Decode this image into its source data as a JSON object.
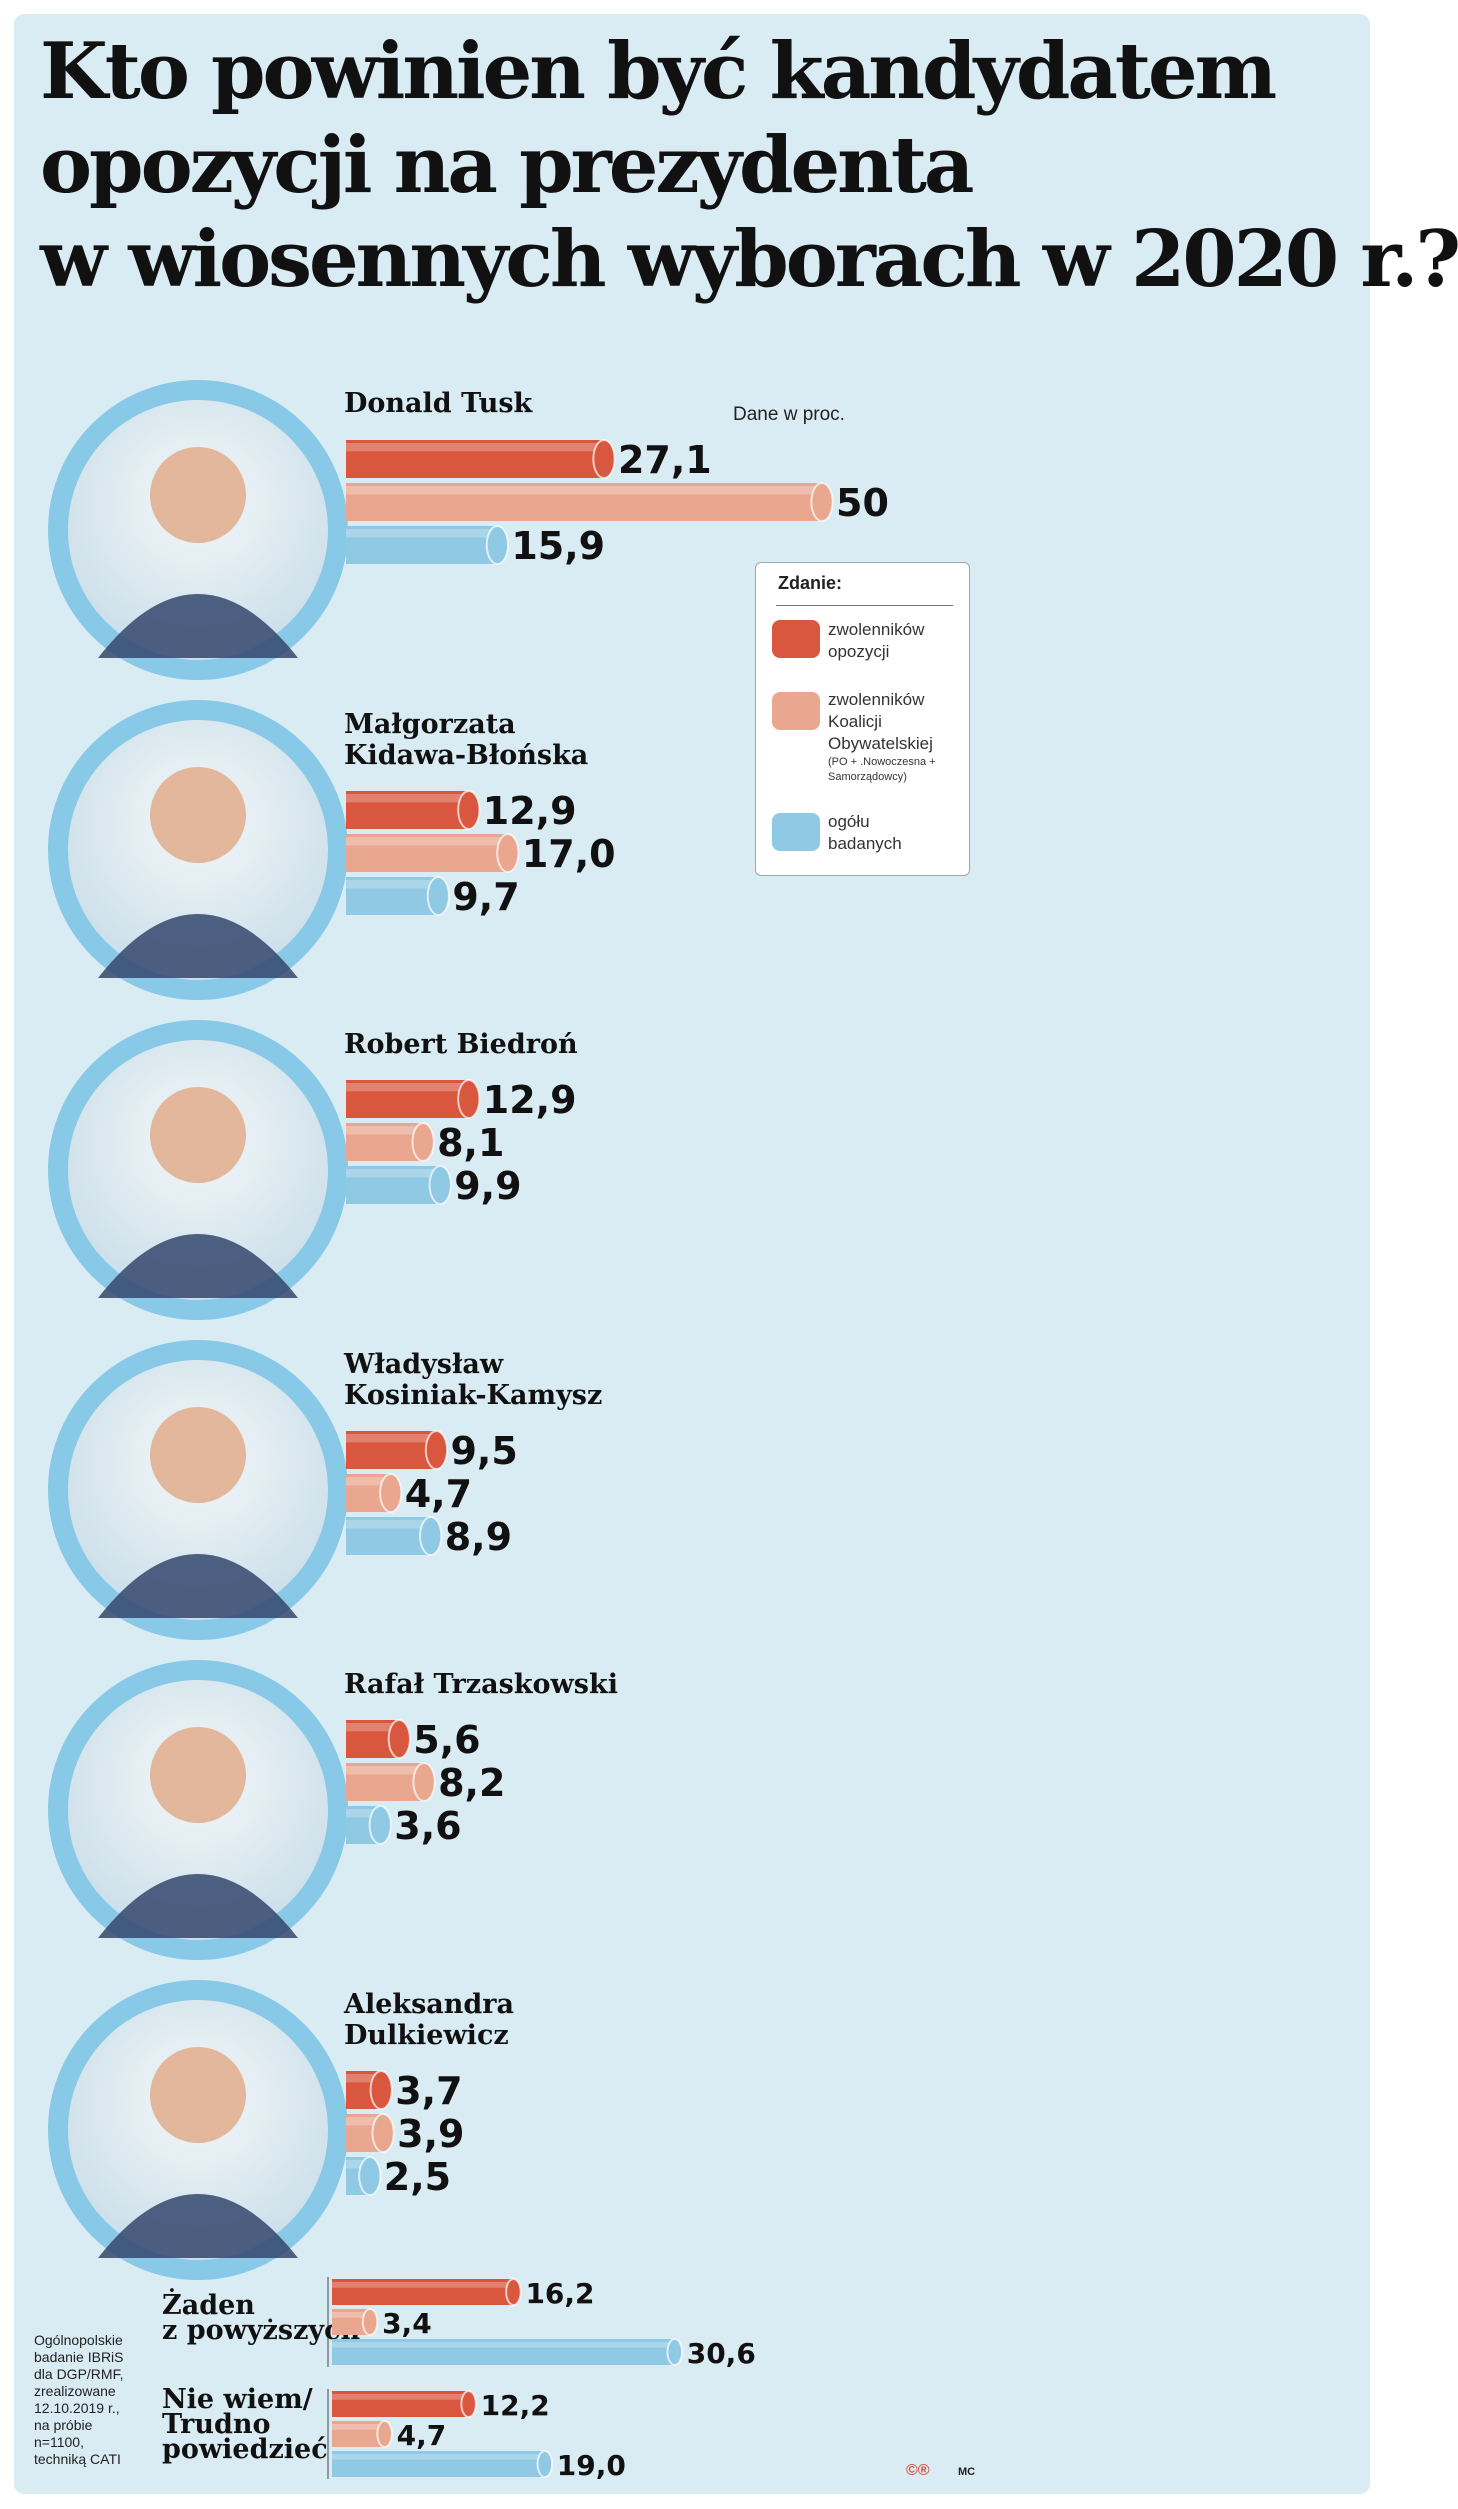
{
  "title_lines": [
    "Kto powinien być kandydatem",
    "opozycji na prezydenta",
    "w wiosennych wyborach  w 2020 r.?"
  ],
  "unit_note": "Dane w proc.",
  "legend": {
    "title": "Zdanie:",
    "items": [
      {
        "label": "zwolenników opozycji"
      },
      {
        "label": "zwolenników Koalicji Obywatelskiej",
        "note": "(PO + .Nowoczesna + Samorządowcy)"
      },
      {
        "label": "ogółu badanych"
      }
    ]
  },
  "colors": {
    "opozycja": "#d9573f",
    "ko": "#e9a78f",
    "ogol": "#8fc9e3",
    "ring": "#87c9e6"
  },
  "source_lines": [
    "Ogólnopolskie",
    "badanie IBRiS",
    "dla DGP/RMF,",
    "zrealizowane",
    "12.10.2019 r.,",
    "na próbie",
    "n=1100,",
    "techniką CATI"
  ],
  "footer": {
    "logo": "©®",
    "author": "MC"
  },
  "chart_data": {
    "type": "bar",
    "orientation": "horizontal",
    "title": "Kto powinien być kandydatem opozycji na prezydenta w wiosennych wyborach  w 2020 r.?",
    "unit": "Dane w proc.",
    "series_names": [
      "zwolenników opozycji",
      "zwolenników Koalicji Obywatelskiej",
      "ogółu badanych"
    ],
    "candidates": [
      {
        "name": [
          "Donald Tusk"
        ],
        "values": [
          27.1,
          50,
          15.9
        ],
        "labels": [
          "27,1",
          "50",
          "15,9"
        ]
      },
      {
        "name": [
          "Małgorzata",
          "Kidawa-Błońska"
        ],
        "values": [
          12.9,
          17.0,
          9.7
        ],
        "labels": [
          "12,9",
          "17,0",
          "9,7"
        ]
      },
      {
        "name": [
          "Robert Biedroń"
        ],
        "values": [
          12.9,
          8.1,
          9.9
        ],
        "labels": [
          "12,9",
          "8,1",
          "9,9"
        ]
      },
      {
        "name": [
          "Władysław",
          "Kosiniak-Kamysz"
        ],
        "values": [
          9.5,
          4.7,
          8.9
        ],
        "labels": [
          "9,5",
          "4,7",
          "8,9"
        ]
      },
      {
        "name": [
          "Rafał Trzaskowski"
        ],
        "values": [
          5.6,
          8.2,
          3.6
        ],
        "labels": [
          "5,6",
          "8,2",
          "3,6"
        ]
      },
      {
        "name": [
          "Aleksandra",
          "Dulkiewicz"
        ],
        "values": [
          3.7,
          3.9,
          2.5
        ],
        "labels": [
          "3,7",
          "3,9",
          "2,5"
        ]
      }
    ],
    "others": [
      {
        "name": [
          "Żaden",
          "z powyższych"
        ],
        "values": [
          16.2,
          3.4,
          30.6
        ],
        "labels": [
          "16,2",
          "3,4",
          "30,6"
        ]
      },
      {
        "name": [
          "Nie wiem/",
          "Trudno",
          "powiedzieć"
        ],
        "values": [
          12.2,
          4.7,
          19.0
        ],
        "labels": [
          "12,2",
          "4,7",
          "19,0"
        ]
      }
    ]
  }
}
